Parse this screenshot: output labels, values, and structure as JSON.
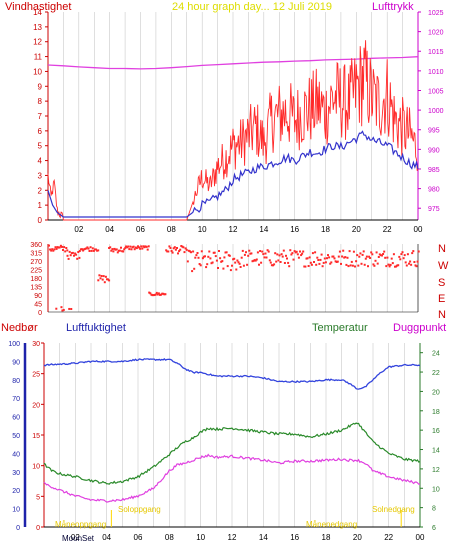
{
  "header": {
    "left_title": "Vindhastighet",
    "center_title": "24 hour graph day... 12 Juli 2019",
    "right_title": "Lufttrykk"
  },
  "lower_header": {
    "label1": "Nedbør",
    "label2": "Luftfuktighet",
    "label3": "Temperatur",
    "label4": "Duggpunkt"
  },
  "sun_labels": {
    "sunrise": "Soloppgang",
    "sunset": "Solnedgang",
    "moonrise": "Måneoppgang",
    "moonset": "Månenedgang",
    "moon_bottom": "MoonSet"
  },
  "colors": {
    "wind": "#ff2a2a",
    "wind_avg": "#3333cc",
    "pressure": "#e040e0",
    "humidity": "#3344dd",
    "temperature": "#2a8a2a",
    "dewpoint": "#e040e0",
    "precip": "#ff0000",
    "sun": "#ffd700",
    "grid": "#bfbfbf",
    "axis": "#000000"
  },
  "chart_data": [
    {
      "type": "line",
      "id": "wind-pressure",
      "title": "24 hour graph day... 12 Juli 2019",
      "xlabel": "",
      "x_ticks": [
        "02",
        "04",
        "06",
        "08",
        "10",
        "12",
        "14",
        "16",
        "18",
        "20",
        "22",
        "00"
      ],
      "xlim": [
        0,
        24
      ],
      "left_axis": {
        "label": "Vindhastighet",
        "ylim": [
          0,
          14
        ],
        "ticks": [
          0,
          1,
          2,
          3,
          4,
          5,
          6,
          7,
          8,
          9,
          10,
          11,
          12,
          13,
          14
        ]
      },
      "right_axis": {
        "label": "Lufttrykk",
        "ylim": [
          972,
          1025
        ],
        "ticks": [
          975,
          980,
          985,
          990,
          995,
          1000,
          1005,
          1010,
          1015,
          1020,
          1025
        ]
      },
      "series": [
        {
          "name": "Vindhastighet",
          "axis": "left",
          "x": [
            0,
            0.2,
            0.4,
            0.6,
            0.8,
            1,
            4,
            8,
            9,
            9.5,
            10,
            10.5,
            11,
            11.5,
            12,
            12.5,
            13,
            13.5,
            14,
            14.5,
            15,
            15.5,
            16,
            16.5,
            17,
            17.5,
            18,
            18.5,
            19,
            19.5,
            20,
            20.5,
            21,
            21.5,
            22,
            22.5,
            23,
            23.5,
            24
          ],
          "values": [
            3,
            1.5,
            2.5,
            0.6,
            0.4,
            0,
            0,
            0,
            0,
            1.5,
            2.8,
            2.2,
            3.5,
            4,
            4.8,
            5,
            5.5,
            6,
            5,
            6.5,
            6.8,
            7,
            6.5,
            7,
            7.2,
            7.5,
            7,
            8,
            7.8,
            7.5,
            8.5,
            9.2,
            8,
            7.5,
            8.2,
            6.5,
            6,
            5.5,
            4.5
          ]
        },
        {
          "name": "",
          "axis": "left",
          "x": [
            0,
            0.3,
            0.6,
            1,
            4,
            8,
            9,
            9.5,
            10,
            10.5,
            11,
            11.5,
            12,
            12.5,
            13,
            13.5,
            14,
            14.5,
            15,
            15.5,
            16,
            16.5,
            17,
            17.5,
            18,
            18.5,
            19,
            19.5,
            20,
            20.5,
            21,
            21.5,
            22,
            22.5,
            23,
            23.5,
            24
          ],
          "values": [
            2,
            1,
            0.5,
            0.2,
            0.2,
            0.2,
            0.2,
            0.6,
            1,
            1.2,
            1.6,
            2,
            2.7,
            3,
            3.2,
            3.5,
            3.6,
            3.8,
            4,
            4.2,
            4,
            4.3,
            4.6,
            4.5,
            4.8,
            5,
            4.9,
            5.2,
            5.5,
            5.8,
            5.4,
            5.2,
            5,
            4.6,
            4.2,
            3.8,
            3.6
          ]
        },
        {
          "name": "Lufttrykk",
          "axis": "right",
          "x": [
            0,
            1,
            2,
            3,
            4,
            5,
            6,
            7,
            8,
            9,
            10,
            11,
            12,
            13,
            14,
            15,
            16,
            17,
            18,
            19,
            20,
            21,
            22,
            23,
            24
          ],
          "values": [
            1011.5,
            1011.3,
            1011.0,
            1010.8,
            1010.6,
            1010.6,
            1010.5,
            1010.6,
            1010.8,
            1011.1,
            1011.4,
            1011.6,
            1011.8,
            1012.0,
            1012.2,
            1012.3,
            1012.5,
            1012.6,
            1012.8,
            1012.9,
            1013.0,
            1013.2,
            1013.3,
            1013.4,
            1013.6
          ]
        }
      ]
    },
    {
      "type": "scatter",
      "id": "wind-direction",
      "xlabel": "",
      "xlim": [
        0,
        24
      ],
      "ylim": [
        0,
        360
      ],
      "y_ticks": [
        0,
        45,
        90,
        135,
        180,
        225,
        270,
        315,
        360
      ],
      "compass_labels": [
        "N",
        "W",
        "S",
        "E",
        "N"
      ],
      "series": [
        {
          "name": "Vindretning",
          "segments": [
            {
              "from": 0,
              "to": 1.2,
              "center": 335,
              "spread": 18
            },
            {
              "from": 1.2,
              "to": 2.0,
              "center": 300,
              "spread": 20
            },
            {
              "from": 2.0,
              "to": 3.2,
              "center": 335,
              "spread": 12
            },
            {
              "from": 3.2,
              "to": 3.9,
              "center": 175,
              "spread": 20
            },
            {
              "from": 3.9,
              "to": 5.0,
              "center": 330,
              "spread": 15
            },
            {
              "from": 5.0,
              "to": 6.5,
              "center": 340,
              "spread": 10
            },
            {
              "from": 6.5,
              "to": 7.6,
              "center": 95,
              "spread": 8
            },
            {
              "from": 7.6,
              "to": 9.0,
              "center": 330,
              "spread": 20
            },
            {
              "from": 9.0,
              "to": 12.5,
              "center": 270,
              "spread": 55
            },
            {
              "from": 12.5,
              "to": 24.0,
              "center": 285,
              "spread": 45
            }
          ]
        }
      ]
    },
    {
      "type": "line",
      "id": "temp-humidity",
      "xlabel": "",
      "x_ticks": [
        "02",
        "04",
        "06",
        "08",
        "10",
        "12",
        "14",
        "16",
        "18",
        "20",
        "22",
        "00"
      ],
      "xlim": [
        0,
        24
      ],
      "axes": {
        "precip": {
          "label": "Nedbør",
          "ylim": [
            0,
            30
          ],
          "ticks": [
            0,
            5,
            10,
            15,
            20,
            25,
            30
          ]
        },
        "humidity": {
          "label": "Luftfuktighet",
          "ylim": [
            0,
            100
          ],
          "ticks": [
            0,
            10,
            20,
            30,
            40,
            50,
            60,
            70,
            80,
            90,
            100
          ]
        },
        "temperature": {
          "label": "Temperatur",
          "ylim": [
            6,
            25
          ],
          "ticks": [
            6,
            8,
            10,
            12,
            14,
            16,
            18,
            20,
            22,
            24
          ]
        }
      },
      "series": [
        {
          "name": "Luftfuktighet",
          "axis": "humidity",
          "x": [
            0,
            1,
            2,
            3,
            4,
            5,
            6,
            7,
            8,
            8.5,
            9,
            9.5,
            10,
            10.5,
            11,
            12,
            13,
            14,
            15,
            16,
            17,
            18,
            19,
            19.5,
            20,
            20.5,
            21,
            21.5,
            22,
            23,
            24
          ],
          "values": [
            88,
            88.5,
            89,
            90,
            90,
            90,
            91,
            91,
            91,
            89,
            86,
            84,
            84,
            83,
            82,
            82,
            82,
            81,
            79,
            79,
            79,
            80,
            80,
            78,
            75,
            76,
            80,
            84,
            87,
            88,
            88
          ]
        },
        {
          "name": "Temperatur",
          "axis": "temperature",
          "x": [
            0,
            0.5,
            1,
            2,
            3,
            4,
            5,
            6,
            7,
            8,
            8.5,
            9,
            9.5,
            10,
            10.5,
            11,
            12,
            13,
            14,
            15,
            16,
            17,
            18,
            19,
            19.5,
            20,
            20.5,
            21,
            22,
            23,
            24
          ],
          "values": [
            12.5,
            11.8,
            11.5,
            11.2,
            10.8,
            10.5,
            10.7,
            11.2,
            12.2,
            13.5,
            14.2,
            14.8,
            15.2,
            15.8,
            16.2,
            16.1,
            16.2,
            16.0,
            15.8,
            15.6,
            15.6,
            15.3,
            15.6,
            16.0,
            16.4,
            16.8,
            15.8,
            14.8,
            13.6,
            13.0,
            12.8
          ]
        },
        {
          "name": "Duggpunkt",
          "axis": "temperature",
          "x": [
            0,
            1,
            2,
            3,
            4,
            5,
            6,
            7,
            8,
            8.5,
            9,
            9.5,
            10,
            10.5,
            11,
            12,
            13,
            14,
            15,
            16,
            17,
            18,
            19,
            19.5,
            20,
            20.5,
            21,
            22,
            23,
            24
          ],
          "values": [
            10.5,
            9.8,
            9.2,
            8.8,
            8.7,
            8.8,
            9.2,
            10.0,
            11.8,
            12.4,
            12.6,
            12.9,
            13.2,
            13.4,
            13.2,
            13.3,
            13.1,
            12.9,
            12.6,
            12.8,
            12.8,
            12.9,
            13.0,
            12.9,
            12.9,
            12.6,
            11.8,
            11.2,
            10.8,
            10.5
          ]
        },
        {
          "name": "Nedbør",
          "axis": "precip",
          "x": [
            0,
            24
          ],
          "values": [
            0,
            0
          ]
        }
      ]
    }
  ]
}
